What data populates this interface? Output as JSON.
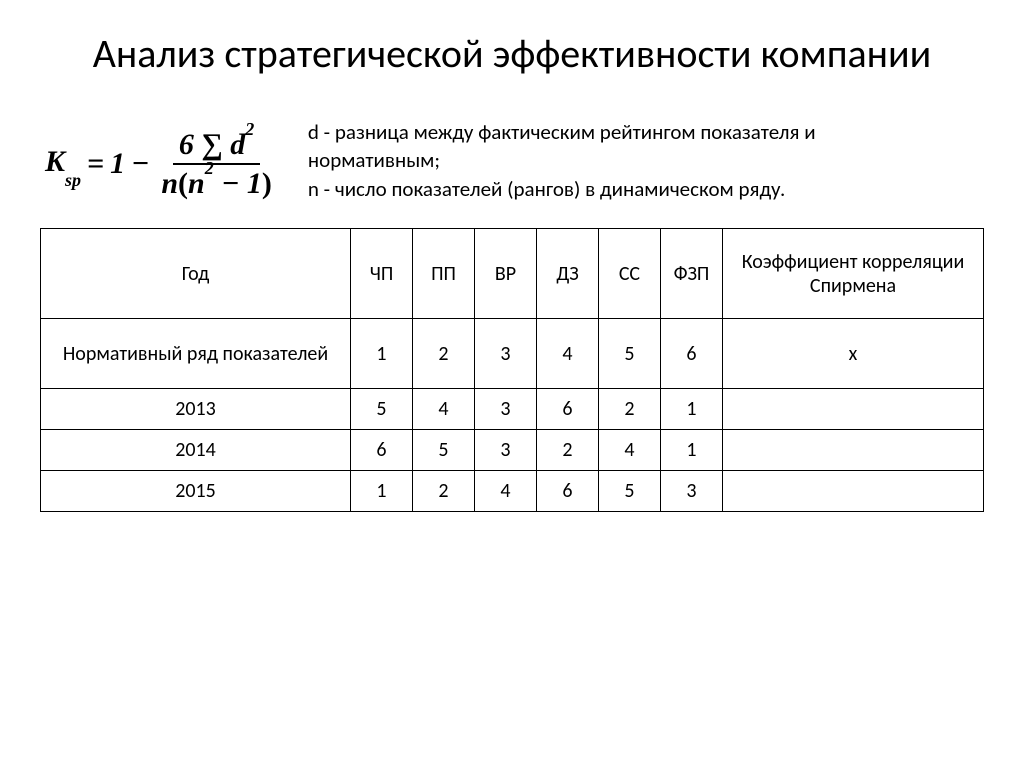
{
  "title": "Анализ стратегической эффективности компании",
  "formula": {
    "K_label": "K",
    "K_sub": "sp",
    "eq": "=",
    "one": "1",
    "minus": "−",
    "num_6": "6",
    "sum": "∑",
    "d": "d",
    "d_sup": "2",
    "den_n1": "n",
    "den_open": "(",
    "den_n2": "n",
    "den_n_sup": "2",
    "den_minus": "−",
    "den_one": "1",
    "den_close": ")"
  },
  "legend": {
    "line1": "d - разница между фактическим рейтингом показателя и нормативным;",
    "line2": "n - число показателей (рангов) в динамическом ряду."
  },
  "table": {
    "headers": {
      "year": "Год",
      "c1": "ЧП",
      "c2": "ПП",
      "c3": "ВР",
      "c4": "ДЗ",
      "c5": "СС",
      "c6": "ФЗП",
      "coef": "Коэффициент корреляции Спирмена"
    },
    "rows": [
      {
        "label": "Нормативный ряд показателей",
        "v": [
          "1",
          "2",
          "3",
          "4",
          "5",
          "6"
        ],
        "coef": "x"
      },
      {
        "label": "2013",
        "v": [
          "5",
          "4",
          "3",
          "6",
          "2",
          "1"
        ],
        "coef": ""
      },
      {
        "label": "2014",
        "v": [
          "6",
          "5",
          "3",
          "2",
          "4",
          "1"
        ],
        "coef": ""
      },
      {
        "label": "2015",
        "v": [
          "1",
          "2",
          "4",
          "6",
          "5",
          "3"
        ],
        "coef": ""
      }
    ]
  },
  "style": {
    "background_color": "#ffffff",
    "text_color": "#000000",
    "border_color": "#000000",
    "title_fontsize": 40,
    "legend_fontsize": 21,
    "table_fontsize": 20,
    "formula_fontsize": 30
  }
}
